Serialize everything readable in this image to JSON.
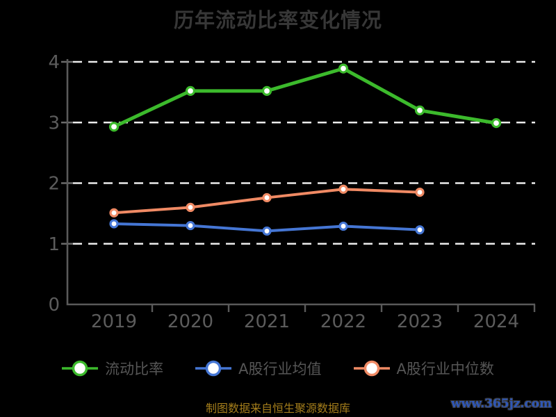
{
  "title": "历年流动比率变化情况",
  "source_note": "制图数据来自恒生聚源数据库",
  "watermark": "www.365jz.com",
  "colors": {
    "background": "#000000",
    "title_text": "#373737",
    "axis_line": "#5a5a5a",
    "axis_label": "#5c5c5c",
    "gridline": "#ececec",
    "legend_text": "#565656",
    "source_text": "#a57e1b",
    "watermark_text": "#2e57b8",
    "series_current_ratio": "#3cba2c",
    "series_industry_mean": "#4576d4",
    "series_industry_median": "#f08a64",
    "marker_fill": "#ffffff"
  },
  "chart_data": {
    "type": "line",
    "title": "历年流动比率变化情况",
    "categories": [
      "2019",
      "2020",
      "2021",
      "2022",
      "2023",
      "2024"
    ],
    "series": [
      {
        "name": "流动比率",
        "color": "#3cba2c",
        "values": [
          2.93,
          3.52,
          3.52,
          3.89,
          3.2,
          2.99
        ]
      },
      {
        "name": "A股行业均值",
        "color": "#4576d4",
        "values": [
          1.33,
          1.3,
          1.21,
          1.29,
          1.23,
          null
        ]
      },
      {
        "name": "A股行业中位数",
        "color": "#f08a64",
        "values": [
          1.51,
          1.6,
          1.76,
          1.9,
          1.85,
          null
        ]
      }
    ],
    "xlabel": "",
    "ylabel": "",
    "ylim": [
      0,
      4
    ],
    "yticks": [
      0,
      1,
      2,
      3,
      4
    ],
    "grid": true,
    "grid_style": "dashed-white",
    "legend_position": "bottom",
    "marker": "circle-white-fill"
  }
}
